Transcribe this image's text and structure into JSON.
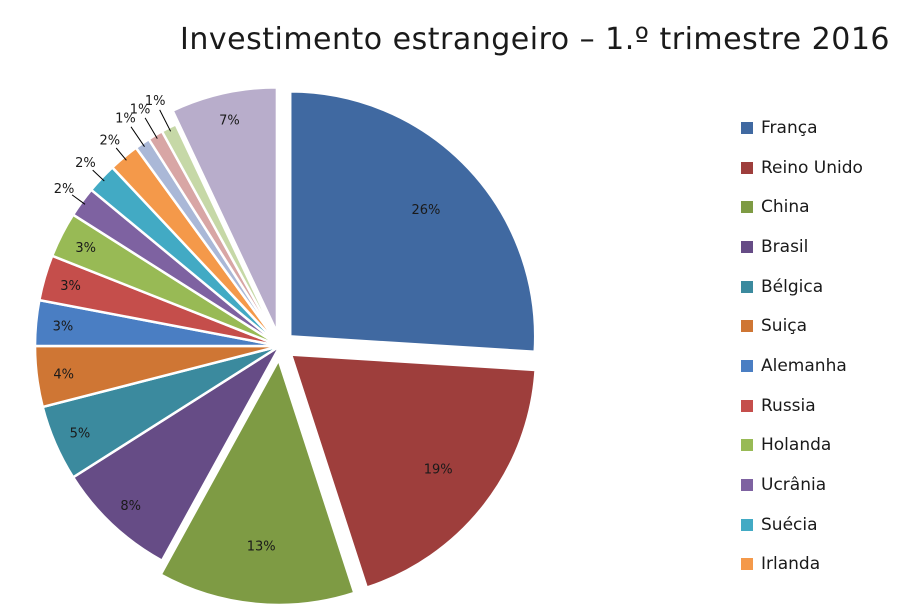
{
  "chart_data": {
    "type": "pie",
    "title": "Investimento estrangeiro – 1.º trimestre 2016",
    "legend_position": "right",
    "slices": [
      {
        "name": "França",
        "value": 26,
        "label": "26%",
        "color": "#4069a1",
        "exploded": true
      },
      {
        "name": "Reino Unido",
        "value": 19,
        "label": "19%",
        "color": "#9e3e3c",
        "exploded": true
      },
      {
        "name": "China",
        "value": 13,
        "label": "13%",
        "color": "#7e9b44",
        "exploded": true
      },
      {
        "name": "Brasil",
        "value": 8,
        "label": "8%",
        "color": "#664c86",
        "exploded": false
      },
      {
        "name": "Bélgica",
        "value": 5,
        "label": "5%",
        "color": "#3b8a9e",
        "exploded": false
      },
      {
        "name": "Suiça",
        "value": 4,
        "label": "4%",
        "color": "#cf7634",
        "exploded": false
      },
      {
        "name": "Alemanha",
        "value": 3,
        "label": "3%",
        "color": "#4a7ec3",
        "exploded": false
      },
      {
        "name": "Russia",
        "value": 3,
        "label": "3%",
        "color": "#c54e4b",
        "exploded": false
      },
      {
        "name": "Holanda",
        "value": 3,
        "label": "3%",
        "color": "#98ba55",
        "exploded": false
      },
      {
        "name": "Ucrânia",
        "value": 2,
        "label": "2%",
        "color": "#7e62a1",
        "exploded": false
      },
      {
        "name": "Suécia",
        "value": 2,
        "label": "2%",
        "color": "#42aac4",
        "exploded": false
      },
      {
        "name": "Irlanda",
        "value": 2,
        "label": "2%",
        "color": "#f4994a",
        "exploded": false
      },
      {
        "name": "",
        "value": 1,
        "label": "1%",
        "color": "#aab8d7",
        "exploded": false
      },
      {
        "name": "",
        "value": 1,
        "label": "1%",
        "color": "#d8a6a5",
        "exploded": false
      },
      {
        "name": "",
        "value": 1,
        "label": "1%",
        "color": "#c6d8a7",
        "exploded": false
      },
      {
        "name": "",
        "value": 7,
        "label": "7%",
        "color": "#b8adcb",
        "exploded": true
      }
    ]
  }
}
